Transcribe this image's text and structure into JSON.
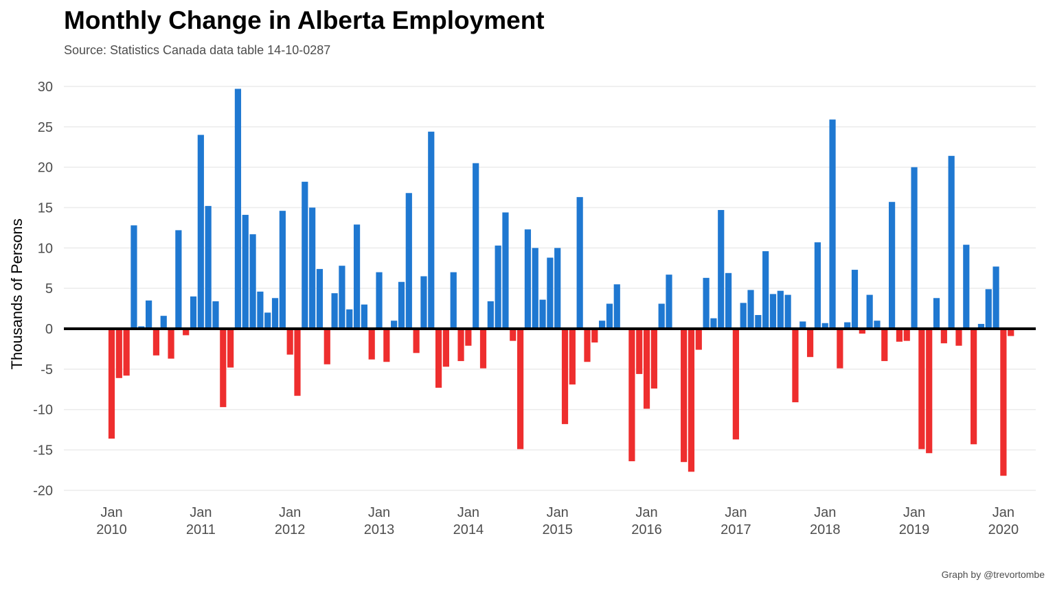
{
  "chart_data": {
    "type": "bar",
    "title": "Monthly Change in Alberta Employment",
    "subtitle": "Source: Statistics Canada data table 14-10-0287",
    "caption": "Graph by @trevortombe",
    "ylabel": "Thousands of Persons",
    "xlabel": "",
    "ylim": [
      -21,
      30.5
    ],
    "yticks": [
      30,
      25,
      20,
      15,
      10,
      5,
      0,
      -5,
      -10,
      -15,
      -20
    ],
    "x_start": "2010-01",
    "x_ticks": [
      {
        "month": "2010-01",
        "line1": "Jan",
        "line2": "2010"
      },
      {
        "month": "2011-01",
        "line1": "Jan",
        "line2": "2011"
      },
      {
        "month": "2012-01",
        "line1": "Jan",
        "line2": "2012"
      },
      {
        "month": "2013-01",
        "line1": "Jan",
        "line2": "2013"
      },
      {
        "month": "2014-01",
        "line1": "Jan",
        "line2": "2014"
      },
      {
        "month": "2015-01",
        "line1": "Jan",
        "line2": "2015"
      },
      {
        "month": "2016-01",
        "line1": "Jan",
        "line2": "2016"
      },
      {
        "month": "2017-01",
        "line1": "Jan",
        "line2": "2017"
      },
      {
        "month": "2018-01",
        "line1": "Jan",
        "line2": "2018"
      },
      {
        "month": "2019-01",
        "line1": "Jan",
        "line2": "2019"
      },
      {
        "month": "2020-01",
        "line1": "Jan",
        "line2": "2020"
      }
    ],
    "grid": true,
    "legend": "none",
    "colors": {
      "positive": "#1f78d1",
      "negative": "#ee2e2e",
      "zero_line": "#000000",
      "grid": "#ebebeb"
    },
    "values": [
      -13.6,
      -6.1,
      -5.8,
      12.8,
      0.3,
      3.5,
      -3.3,
      1.6,
      -3.7,
      12.2,
      -0.8,
      4.0,
      24.0,
      15.2,
      3.4,
      -9.7,
      -4.8,
      29.7,
      14.1,
      11.7,
      4.6,
      2.0,
      3.8,
      14.6,
      -3.2,
      -8.3,
      18.2,
      15.0,
      7.4,
      -4.4,
      4.4,
      7.8,
      2.4,
      12.9,
      3.0,
      -3.8,
      7.0,
      -4.1,
      1.0,
      5.8,
      16.8,
      -3.0,
      6.5,
      24.4,
      -7.3,
      -4.7,
      7.0,
      -4.0,
      -2.1,
      20.5,
      -4.9,
      3.4,
      10.3,
      14.4,
      -1.5,
      -14.9,
      12.3,
      10.0,
      3.6,
      8.8,
      10.0,
      -11.8,
      -6.9,
      16.3,
      -4.1,
      -1.7,
      1.0,
      3.1,
      5.5,
      0.0,
      -16.4,
      -5.6,
      -9.9,
      -7.4,
      3.1,
      6.7,
      0.0,
      -16.5,
      -17.7,
      -2.6,
      6.3,
      1.3,
      14.7,
      6.9,
      -13.7,
      3.2,
      4.8,
      1.7,
      9.6,
      4.3,
      4.7,
      4.2,
      -9.1,
      0.9,
      -3.5,
      10.7,
      0.7,
      25.9,
      -4.9,
      0.8,
      7.3,
      -0.6,
      4.2,
      1.0,
      -4.0,
      15.7,
      -1.6,
      -1.5,
      20.0,
      -14.9,
      -15.4,
      3.8,
      -1.8,
      21.4,
      -2.1,
      10.4,
      -14.3,
      0.6,
      4.9,
      7.7,
      -18.2,
      -0.9
    ]
  }
}
